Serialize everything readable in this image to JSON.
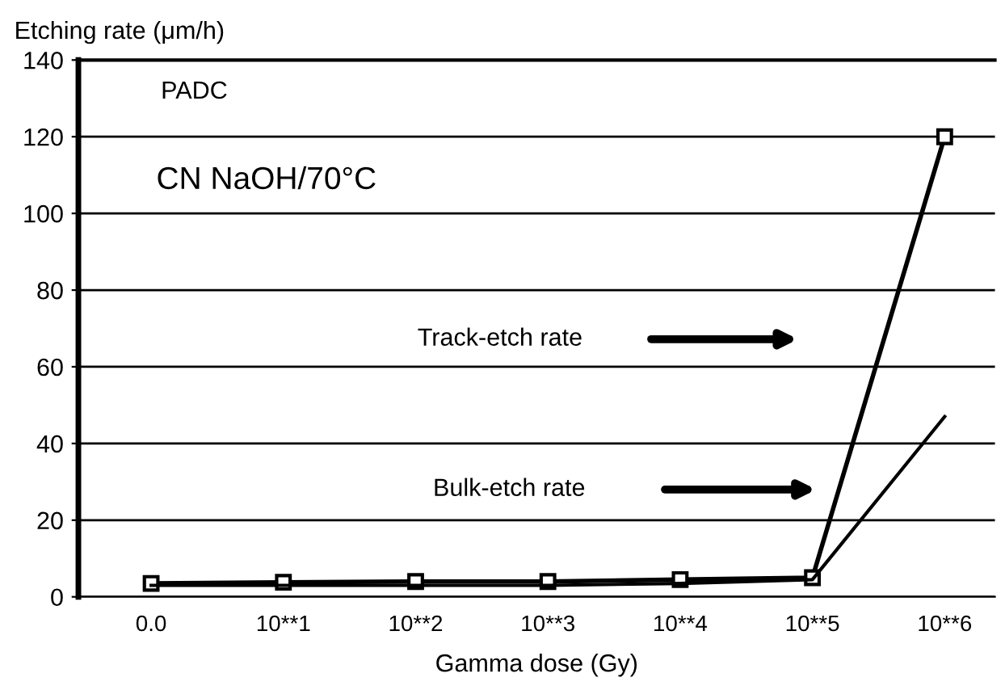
{
  "chart_data": {
    "type": "line",
    "xlabel": "Gamma dose (Gy)",
    "ylabel": "Etching rate (μm/h)",
    "categories": [
      "0.0",
      "10**1",
      "10**2",
      "10**3",
      "10**4",
      "10**5",
      "10**6"
    ],
    "series": [
      {
        "color": "#000000",
        "marker": "square",
        "values": [
          3.5,
          3.8,
          4,
          4,
          4.5,
          5,
          120
        ]
      },
      {
        "color": "#000000",
        "marker": "none",
        "values": [
          3,
          3,
          3,
          3,
          3.5,
          4.5,
          47
        ]
      }
    ],
    "ylim": [
      0,
      140
    ],
    "yticks": [
      0,
      20,
      40,
      60,
      80,
      100,
      120,
      140
    ],
    "grid": "y",
    "annotations": [
      "PADC",
      "CN NaOH/70°C",
      "Track-etch rate",
      "Bulk-etch rate"
    ]
  }
}
